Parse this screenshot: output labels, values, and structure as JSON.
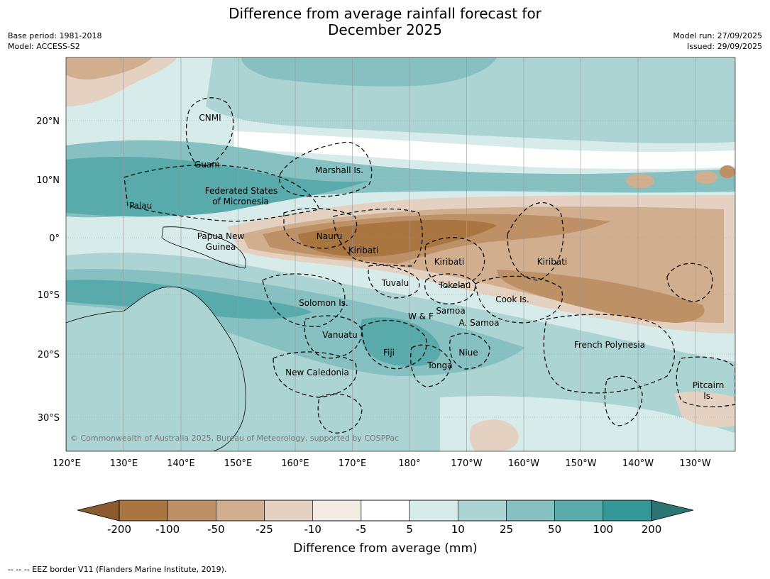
{
  "title": {
    "line1": "Difference from average rainfall forecast for",
    "line2": "December 2025"
  },
  "meta_left": {
    "base_period": "Base period: 1981-2018",
    "model": "Model: ACCESS-S2"
  },
  "meta_right": {
    "model_run": "Model run: 27/09/2025",
    "issued": "Issued: 29/09/2025"
  },
  "axes": {
    "lon_ticks": [
      "120°E",
      "130°E",
      "140°E",
      "150°E",
      "160°E",
      "170°E",
      "180°",
      "170°W",
      "160°W",
      "150°W",
      "140°W",
      "130°W"
    ],
    "lat_ticks": [
      "20°N",
      "10°N",
      "0°",
      "10°S",
      "20°S",
      "30°S"
    ]
  },
  "regions": [
    {
      "name": "cnmi",
      "label": "CNMI"
    },
    {
      "name": "guam",
      "label": "Guam"
    },
    {
      "name": "marshall",
      "label": "Marshall Is."
    },
    {
      "name": "fsm",
      "label": "Federated States",
      "label2": "of Micronesia"
    },
    {
      "name": "palau",
      "label": "Palau"
    },
    {
      "name": "png",
      "label": "Papua New",
      "label2": "Guinea"
    },
    {
      "name": "nauru",
      "label": "Nauru"
    },
    {
      "name": "kiribati-west",
      "label": "Kiribati"
    },
    {
      "name": "kiribati-central",
      "label": "Kiribati"
    },
    {
      "name": "kiribati-east",
      "label": "Kiribati"
    },
    {
      "name": "tuvalu",
      "label": "Tuvalu"
    },
    {
      "name": "tokelau",
      "label": "Tokelau"
    },
    {
      "name": "cook",
      "label": "Cook Is."
    },
    {
      "name": "solomon",
      "label": "Solomon Is."
    },
    {
      "name": "samoa",
      "label": "Samoa"
    },
    {
      "name": "wf",
      "label": "W & F"
    },
    {
      "name": "asamoa",
      "label": "A. Samoa"
    },
    {
      "name": "vanuatu",
      "label": "Vanuatu"
    },
    {
      "name": "fiji",
      "label": "Fiji"
    },
    {
      "name": "niue",
      "label": "Niue"
    },
    {
      "name": "tonga",
      "label": "Tonga"
    },
    {
      "name": "frenchpoly",
      "label": "French Polynesia"
    },
    {
      "name": "newcal",
      "label": "New Caledonia"
    },
    {
      "name": "pitcairn",
      "label": "Pitcairn",
      "label2": "Is."
    }
  ],
  "copyright": "© Commonwealth of Australia 2025, Bureau of Meteorology, supported by COSPPac",
  "colorbar": {
    "ticks": [
      "-200",
      "-100",
      "-50",
      "-25",
      "-10",
      "-5",
      "5",
      "10",
      "25",
      "50",
      "100",
      "200"
    ],
    "colors": [
      "#a97540",
      "#bd9066",
      "#d1ae8d",
      "#e4d1c1",
      "#f2ece5",
      "#ffffff",
      "#d6ebea",
      "#abd4d3",
      "#87c0c1",
      "#58aaab",
      "#349898"
    ],
    "extend_low_color": "#8b5a2e",
    "extend_high_color": "#2b7572",
    "label": "Difference from average (mm)"
  },
  "footer": "--  --  -- EEZ border V11 (Flanders Marine Institute, 2019)."
}
